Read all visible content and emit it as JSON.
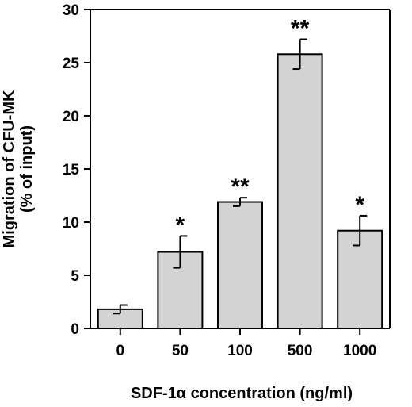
{
  "chart_data": {
    "type": "bar",
    "categories": [
      "0",
      "50",
      "100",
      "500",
      "1000"
    ],
    "values": [
      1.8,
      7.2,
      11.9,
      25.8,
      9.2
    ],
    "errors": [
      0.4,
      1.5,
      0.4,
      1.4,
      1.4
    ],
    "significance": [
      "",
      "*",
      "**",
      "**",
      "*"
    ],
    "xlabel": "SDF-1α concentration (ng/ml)",
    "ylabel_line1": "Migration of CFU-MK",
    "ylabel_line2": "(% of input)",
    "ylim": [
      0,
      30
    ],
    "yticks": [
      0,
      5,
      10,
      15,
      20,
      25,
      30
    ],
    "bar_color": "#d3d3d3",
    "axis_color": "#000000",
    "grid": false
  }
}
